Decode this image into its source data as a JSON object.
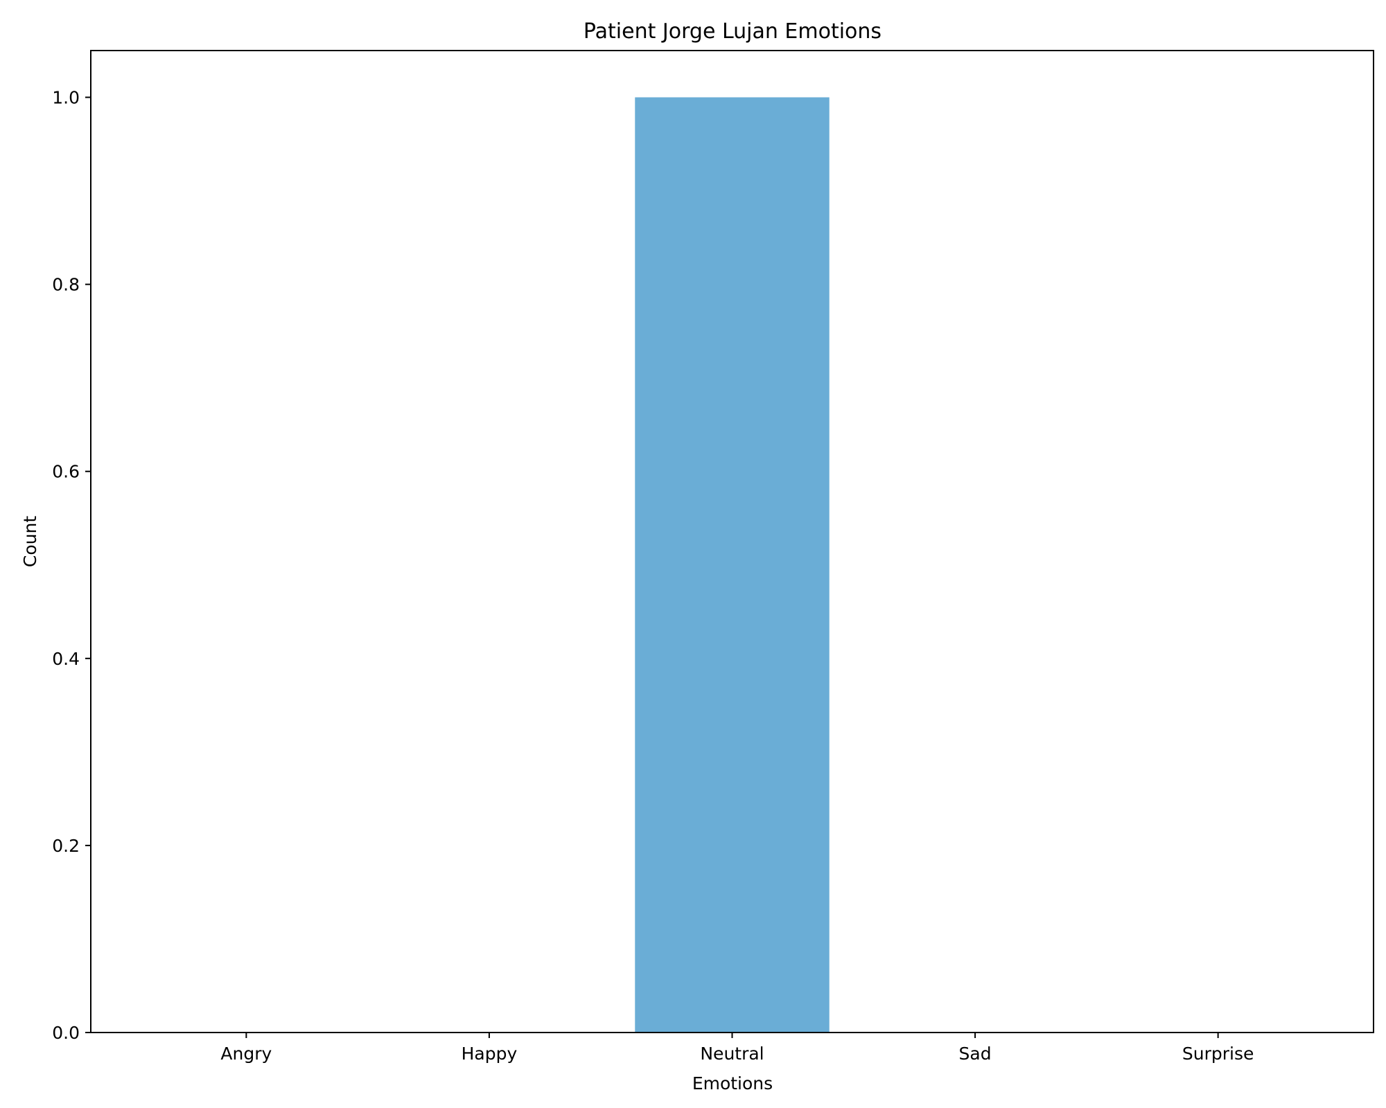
{
  "chart_data": {
    "type": "bar",
    "title": "Patient Jorge Lujan Emotions",
    "xlabel": "Emotions",
    "ylabel": "Count",
    "categories": [
      "Angry",
      "Happy",
      "Neutral",
      "Sad",
      "Surprise"
    ],
    "values": [
      0,
      0,
      1,
      0,
      0
    ],
    "ylim": [
      0,
      1.05
    ],
    "yticks": [
      0.0,
      0.2,
      0.4,
      0.6,
      0.8,
      1.0
    ],
    "ytick_labels": [
      "0.0",
      "0.2",
      "0.4",
      "0.6",
      "0.8",
      "1.0"
    ],
    "bar_color": "#6aadd6",
    "grid": false,
    "legend": "none"
  }
}
